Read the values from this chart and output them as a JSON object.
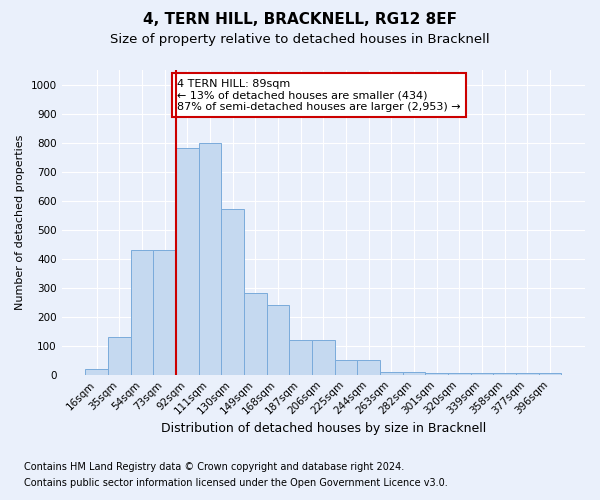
{
  "title": "4, TERN HILL, BRACKNELL, RG12 8EF",
  "subtitle": "Size of property relative to detached houses in Bracknell",
  "xlabel": "Distribution of detached houses by size in Bracknell",
  "ylabel": "Number of detached properties",
  "categories": [
    "16sqm",
    "35sqm",
    "54sqm",
    "73sqm",
    "92sqm",
    "111sqm",
    "130sqm",
    "149sqm",
    "168sqm",
    "187sqm",
    "206sqm",
    "225sqm",
    "244sqm",
    "263sqm",
    "282sqm",
    "301sqm",
    "320sqm",
    "339sqm",
    "358sqm",
    "377sqm",
    "396sqm"
  ],
  "values": [
    20,
    130,
    430,
    430,
    780,
    800,
    570,
    280,
    240,
    120,
    120,
    50,
    50,
    10,
    10,
    5,
    5,
    5,
    5,
    5,
    5
  ],
  "bar_color": "#c5d9f0",
  "bar_edge_color": "#7aabdb",
  "vline_x_index": 4,
  "vline_color": "#cc0000",
  "annotation_text": "4 TERN HILL: 89sqm\n← 13% of detached houses are smaller (434)\n87% of semi-detached houses are larger (2,953) →",
  "annotation_box_color": "#ffffff",
  "annotation_box_edge_color": "#cc0000",
  "ylim": [
    0,
    1050
  ],
  "yticks": [
    0,
    100,
    200,
    300,
    400,
    500,
    600,
    700,
    800,
    900,
    1000
  ],
  "footer_line1": "Contains HM Land Registry data © Crown copyright and database right 2024.",
  "footer_line2": "Contains public sector information licensed under the Open Government Licence v3.0.",
  "background_color": "#eaf0fb",
  "plot_bg_color": "#eaf0fb",
  "grid_color": "#ffffff",
  "title_fontsize": 11,
  "subtitle_fontsize": 9.5,
  "xlabel_fontsize": 9,
  "ylabel_fontsize": 8,
  "tick_fontsize": 7.5,
  "annotation_fontsize": 8,
  "footer_fontsize": 7
}
